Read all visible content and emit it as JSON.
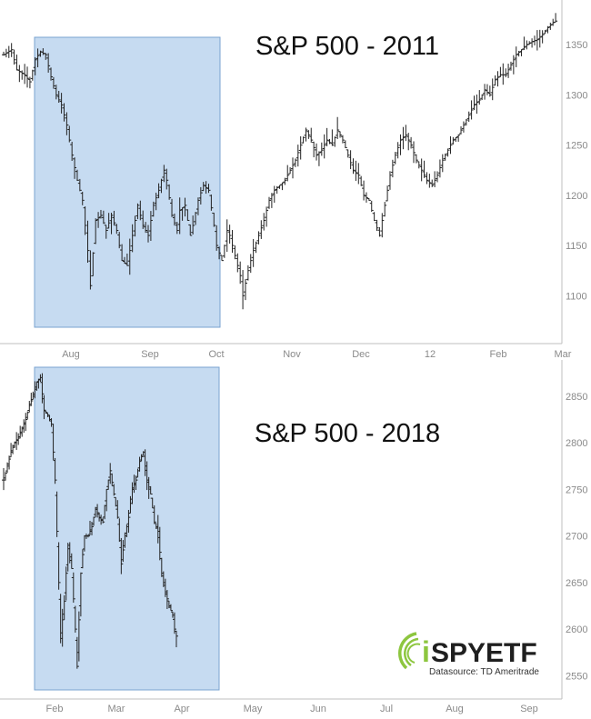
{
  "chart_data": [
    {
      "type": "bar",
      "subtype": "ohlc",
      "title": "S&P 500 - 2011",
      "x_tick_labels": [
        "Aug",
        "Sep",
        "Oct",
        "Nov",
        "Dec",
        "12",
        "Feb",
        "Mar"
      ],
      "y_ticks": [
        1100,
        1150,
        1200,
        1250,
        1300,
        1350
      ],
      "ylim": [
        1055,
        1390
      ],
      "grid": false,
      "highlight": {
        "start": "Jul 22",
        "end": "Oct 4",
        "color": "#c6dbf1"
      },
      "closes_anchor": [
        [
          0,
          1340
        ],
        [
          3,
          1345
        ],
        [
          5,
          1325
        ],
        [
          8,
          1320
        ],
        [
          10,
          1313
        ],
        [
          12,
          1335
        ],
        [
          14,
          1343
        ],
        [
          16,
          1340
        ],
        [
          18,
          1318
        ],
        [
          20,
          1300
        ],
        [
          22,
          1290
        ],
        [
          24,
          1270
        ],
        [
          26,
          1240
        ],
        [
          28,
          1215
        ],
        [
          30,
          1195
        ],
        [
          32,
          1145
        ],
        [
          33,
          1110
        ],
        [
          35,
          1175
        ],
        [
          37,
          1180
        ],
        [
          39,
          1165
        ],
        [
          41,
          1180
        ],
        [
          43,
          1165
        ],
        [
          45,
          1135
        ],
        [
          47,
          1130
        ],
        [
          49,
          1160
        ],
        [
          51,
          1190
        ],
        [
          53,
          1170
        ],
        [
          55,
          1160
        ],
        [
          57,
          1190
        ],
        [
          59,
          1205
        ],
        [
          61,
          1225
        ],
        [
          62,
          1215
        ],
        [
          64,
          1180
        ],
        [
          66,
          1165
        ],
        [
          67,
          1185
        ],
        [
          69,
          1190
        ],
        [
          71,
          1160
        ],
        [
          72,
          1170
        ],
        [
          74,
          1195
        ],
        [
          76,
          1210
        ],
        [
          78,
          1205
        ],
        [
          80,
          1170
        ],
        [
          81,
          1150
        ],
        [
          83,
          1135
        ],
        [
          85,
          1165
        ],
        [
          86,
          1160
        ],
        [
          88,
          1140
        ],
        [
          90,
          1120
        ],
        [
          91,
          1100
        ],
        [
          93,
          1125
        ],
        [
          95,
          1145
        ],
        [
          97,
          1160
        ],
        [
          99,
          1175
        ],
        [
          101,
          1195
        ],
        [
          103,
          1205
        ],
        [
          105,
          1210
        ],
        [
          107,
          1215
        ],
        [
          109,
          1225
        ],
        [
          111,
          1235
        ],
        [
          113,
          1250
        ],
        [
          115,
          1265
        ],
        [
          117,
          1255
        ],
        [
          119,
          1240
        ],
        [
          121,
          1245
        ],
        [
          123,
          1255
        ],
        [
          125,
          1250
        ],
        [
          127,
          1265
        ],
        [
          129,
          1255
        ],
        [
          131,
          1240
        ],
        [
          133,
          1225
        ],
        [
          135,
          1220
        ],
        [
          137,
          1200
        ],
        [
          139,
          1195
        ],
        [
          141,
          1175
        ],
        [
          143,
          1160
        ],
        [
          145,
          1190
        ],
        [
          147,
          1220
        ],
        [
          149,
          1240
        ],
        [
          151,
          1255
        ],
        [
          153,
          1260
        ],
        [
          155,
          1250
        ],
        [
          157,
          1235
        ],
        [
          159,
          1225
        ],
        [
          161,
          1215
        ],
        [
          163,
          1210
        ],
        [
          165,
          1220
        ],
        [
          167,
          1235
        ],
        [
          169,
          1245
        ],
        [
          171,
          1255
        ],
        [
          173,
          1260
        ],
        [
          175,
          1270
        ],
        [
          177,
          1280
        ],
        [
          179,
          1290
        ],
        [
          181,
          1295
        ],
        [
          183,
          1305
        ],
        [
          185,
          1300
        ],
        [
          187,
          1315
        ],
        [
          189,
          1320
        ],
        [
          191,
          1320
        ],
        [
          193,
          1330
        ],
        [
          195,
          1340
        ],
        [
          197,
          1345
        ],
        [
          199,
          1350
        ],
        [
          201,
          1353
        ],
        [
          203,
          1355
        ],
        [
          205,
          1360
        ],
        [
          207,
          1367
        ],
        [
          209,
          1372
        ],
        [
          211,
          1375
        ]
      ]
    },
    {
      "type": "bar",
      "subtype": "ohlc",
      "title": "S&P 500 - 2018",
      "x_tick_labels": [
        "Feb",
        "Mar",
        "Apr",
        "May",
        "Jun",
        "Jul",
        "Aug",
        "Sep"
      ],
      "y_ticks": [
        2550,
        2600,
        2650,
        2700,
        2750,
        2800,
        2850
      ],
      "ylim": [
        2525,
        2885
      ],
      "grid": false,
      "highlight": {
        "start": "Jan 22",
        "end": "Apr 16",
        "color": "#c6dbf1"
      },
      "closes_anchor": [
        [
          0,
          2760
        ],
        [
          2,
          2775
        ],
        [
          4,
          2790
        ],
        [
          6,
          2800
        ],
        [
          8,
          2805
        ],
        [
          10,
          2815
        ],
        [
          12,
          2825
        ],
        [
          14,
          2840
        ],
        [
          16,
          2850
        ],
        [
          18,
          2865
        ],
        [
          20,
          2870
        ],
        [
          22,
          2835
        ],
        [
          24,
          2830
        ],
        [
          26,
          2820
        ],
        [
          28,
          2760
        ],
        [
          30,
          2650
        ],
        [
          31,
          2590
        ],
        [
          33,
          2630
        ],
        [
          35,
          2690
        ],
        [
          37,
          2665
        ],
        [
          39,
          2600
        ],
        [
          40,
          2560
        ],
        [
          42,
          2660
        ],
        [
          44,
          2700
        ],
        [
          46,
          2700
        ],
        [
          48,
          2710
        ],
        [
          50,
          2730
        ],
        [
          52,
          2720
        ],
        [
          54,
          2715
        ],
        [
          56,
          2750
        ],
        [
          58,
          2770
        ],
        [
          60,
          2745
        ],
        [
          62,
          2720
        ],
        [
          64,
          2670
        ],
        [
          66,
          2700
        ],
        [
          68,
          2720
        ],
        [
          70,
          2750
        ],
        [
          72,
          2760
        ],
        [
          74,
          2780
        ],
        [
          76,
          2790
        ],
        [
          78,
          2760
        ],
        [
          80,
          2745
        ],
        [
          82,
          2715
        ],
        [
          84,
          2705
        ],
        [
          86,
          2660
        ],
        [
          88,
          2640
        ],
        [
          90,
          2625
        ],
        [
          92,
          2615
        ],
        [
          93,
          2600
        ],
        [
          95,
          2585
        ]
      ]
    }
  ],
  "logo": {
    "name_i": "i",
    "name_rest": "SPYETF",
    "datasource": "Datasource: TD Ameritrade",
    "color_green": "#8dc63f",
    "color_text": "#1f1f1f"
  }
}
